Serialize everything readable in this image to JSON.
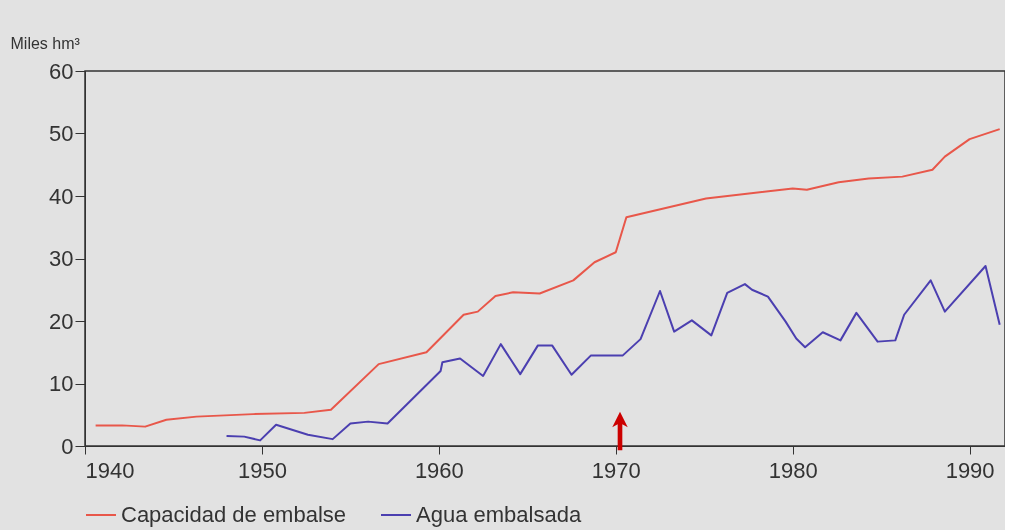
{
  "chart_data": {
    "type": "line",
    "ylabel": "Miles hm³",
    "xlim": [
      1940,
      1992
    ],
    "xticks": [
      1940,
      1950,
      1960,
      1970,
      1980,
      1990
    ],
    "ylim": [
      0,
      60
    ],
    "yticks": [
      0,
      10,
      20,
      30,
      40,
      50,
      60
    ],
    "grid": false,
    "legend": "bottom",
    "line_style": "solid",
    "marker": "none",
    "series": [
      {
        "name": "Capacidad de embalse",
        "color": "#e8574a",
        "x": [
          1940.6,
          1942.1,
          1943.4,
          1944.6,
          1946.3,
          1949.5,
          1952.4,
          1953.9,
          1956.6,
          1959.3,
          1961.4,
          1962.2,
          1963.2,
          1964.2,
          1965.7,
          1967.6,
          1968.8,
          1970,
          1970.6,
          1975.1,
          1980,
          1980.8,
          1982.6,
          1984.3,
          1986.2,
          1987.9,
          1988.6,
          1990,
          1991.7
        ],
        "values": [
          3.3,
          3.3,
          3.1,
          4.2,
          4.7,
          5.1,
          5.3,
          5.8,
          13.1,
          15,
          21,
          21.5,
          24,
          24.6,
          24.4,
          26.5,
          29.4,
          31,
          36.6,
          39.6,
          41.2,
          41,
          42.2,
          42.8,
          43.1,
          44.2,
          46.3,
          49.1,
          50.7
        ]
      },
      {
        "name": "Agua embalsada",
        "color": "#4b3fb0",
        "x": [
          1948,
          1949,
          1949.9,
          1950.8,
          1952.6,
          1954,
          1955,
          1956,
          1957.1,
          1960.1,
          1960.2,
          1961.2,
          1962.5,
          1963.5,
          1964.6,
          1965.6,
          1966.4,
          1967.5,
          1968.6,
          1970.4,
          1971.4,
          1972.5,
          1973.3,
          1974.3,
          1975.4,
          1976.3,
          1977.3,
          1977.7,
          1978.6,
          1979.6,
          1980.2,
          1980.7,
          1981.7,
          1982.7,
          1983.6,
          1984.8,
          1985.8,
          1986.3,
          1987.8,
          1988.6,
          1990.9,
          1991.7
        ],
        "values": [
          1.6,
          1.5,
          0.9,
          3.4,
          1.8,
          1.1,
          3.6,
          3.9,
          3.6,
          12,
          13.4,
          14,
          11.2,
          16.3,
          11.5,
          16.1,
          16.1,
          11.4,
          14.5,
          14.5,
          17.1,
          24.8,
          18.3,
          20.1,
          17.7,
          24.5,
          25.9,
          25,
          23.9,
          19.9,
          17.2,
          15.8,
          18.2,
          16.9,
          21.3,
          16.7,
          16.9,
          21,
          26.5,
          21.5,
          28.8,
          19.4
        ]
      }
    ]
  }
}
